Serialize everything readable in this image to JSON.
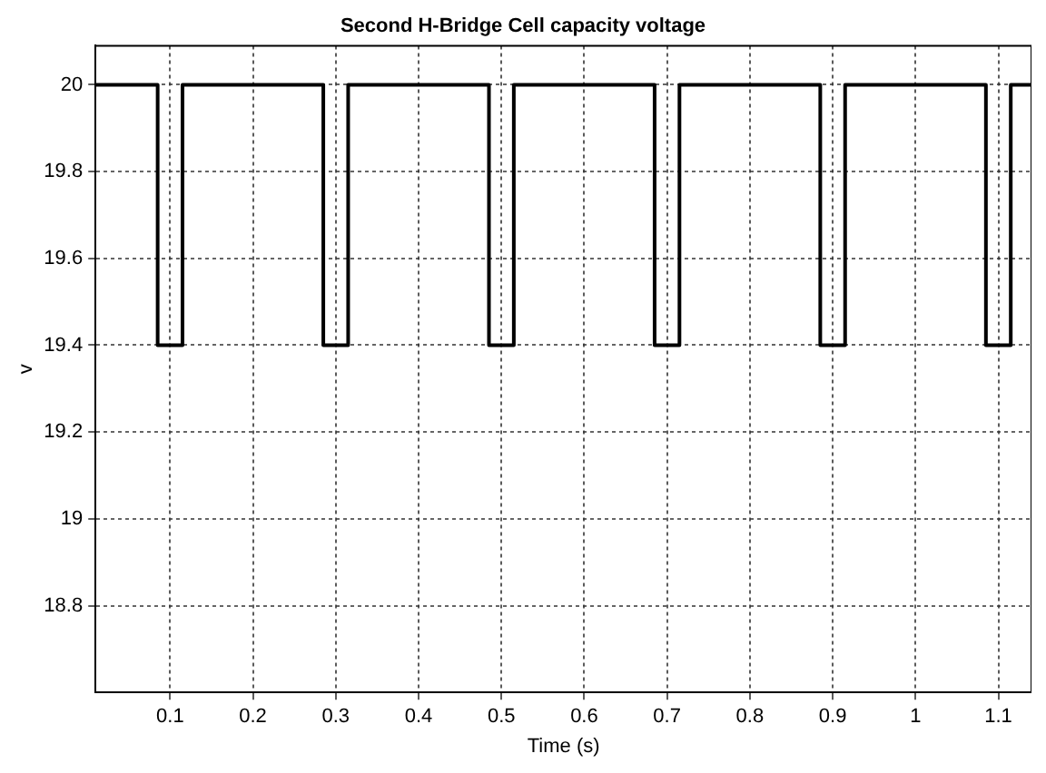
{
  "chart_data": {
    "type": "line",
    "title": "Second H-Bridge Cell capacity voltage",
    "xlabel": "Time (s)",
    "ylabel": "v",
    "x": [
      0.01,
      0.085,
      0.085,
      0.115,
      0.115,
      0.285,
      0.285,
      0.315,
      0.315,
      0.485,
      0.485,
      0.515,
      0.515,
      0.685,
      0.685,
      0.715,
      0.715,
      0.885,
      0.885,
      0.915,
      0.915,
      1.085,
      1.085,
      1.115,
      1.115,
      1.14
    ],
    "series": [
      {
        "color": "#000000",
        "values": [
          20,
          20,
          19.4,
          19.4,
          20,
          20,
          19.4,
          19.4,
          20,
          20,
          19.4,
          19.4,
          20,
          20,
          19.4,
          19.4,
          20,
          20,
          19.4,
          19.4,
          20,
          20,
          19.4,
          19.4,
          20,
          20
        ]
      }
    ],
    "xlim": [
      0.01,
      1.14
    ],
    "ylim": [
      18.6,
      20.09
    ],
    "xticks": [
      0.1,
      0.2,
      0.3,
      0.4,
      0.5,
      0.6,
      0.7,
      0.8,
      0.9,
      1,
      1.1
    ],
    "yticks": [
      18.8,
      19,
      19.2,
      19.4,
      19.6,
      19.8,
      20
    ],
    "grid": true,
    "legend": false,
    "marker": "none",
    "line_style": "solid"
  }
}
